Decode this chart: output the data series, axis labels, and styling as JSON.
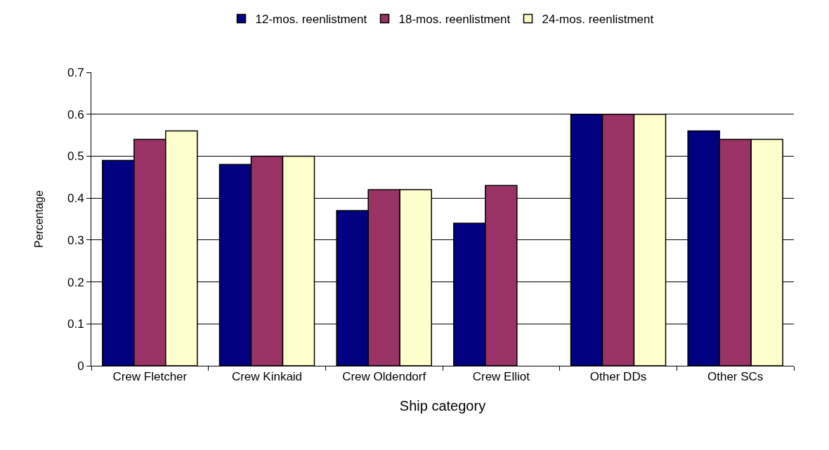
{
  "chart_data": {
    "type": "bar",
    "xlabel": "Ship category",
    "ylabel": "Percentage",
    "categories": [
      "Crew Fletcher",
      "Crew Kinkaid",
      "Crew Oldendorf",
      "Crew Elliot",
      "Other DDs",
      "Other SCs"
    ],
    "series": [
      {
        "name": "12-mos. reenlistment",
        "color": "#000080",
        "values": [
          0.49,
          0.48,
          0.37,
          0.34,
          0.6,
          0.56
        ]
      },
      {
        "name": "18-mos. reenlistment",
        "color": "#993366",
        "values": [
          0.54,
          0.5,
          0.42,
          0.43,
          0.6,
          0.54
        ]
      },
      {
        "name": "24-mos. reenlistment",
        "color": "#ffffcc",
        "values": [
          0.56,
          0.5,
          0.42,
          null,
          0.6,
          0.54
        ]
      }
    ],
    "ylim": [
      0,
      0.7
    ],
    "yticks": [
      0,
      0.1,
      0.2,
      0.3,
      0.4,
      0.5,
      0.6,
      0.7
    ],
    "grid": "y",
    "legend": "top"
  }
}
